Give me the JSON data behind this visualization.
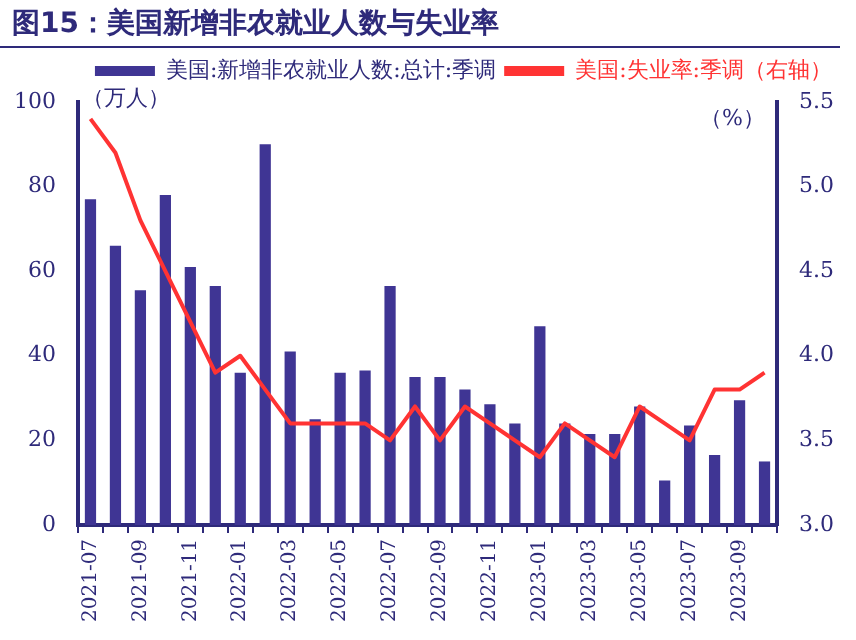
{
  "chart_data": {
    "type": "bar",
    "title": "图15：美国新增非农就业人数与失业率",
    "ylabel": "（万人）",
    "y2label": "（%）",
    "categories": [
      "2021-07",
      null,
      "2021-09",
      null,
      "2021-11",
      null,
      "2022-01",
      null,
      "2022-03",
      null,
      "2022-05",
      null,
      "2022-07",
      null,
      "2022-09",
      null,
      "2022-11",
      null,
      "2023-01",
      null,
      "2023-03",
      null,
      "2023-05",
      null,
      "2023-07",
      null,
      "2023-09",
      null
    ],
    "series": [
      {
        "name": "美国:新增非农就业人数:总计:季调",
        "color": "#3f3594",
        "values": [
          77,
          66,
          55.5,
          78,
          61,
          56.5,
          36,
          90,
          41,
          25,
          36,
          36.5,
          56.5,
          35,
          35,
          32,
          28.5,
          24,
          47,
          24,
          21.5,
          21.5,
          28,
          10.5,
          23.5,
          16.5,
          29.5,
          15
        ]
      },
      {
        "name": "美国:失业率:季调（右轴）",
        "type": "line",
        "axis": "y2",
        "color": "#ff3333",
        "values": [
          5.4,
          5.2,
          4.8,
          4.5,
          4.2,
          3.9,
          4.0,
          3.8,
          3.6,
          3.6,
          3.6,
          3.6,
          3.5,
          3.7,
          3.5,
          3.7,
          3.6,
          3.5,
          3.4,
          3.6,
          3.5,
          3.4,
          3.7,
          3.6,
          3.5,
          3.8,
          3.8,
          3.9
        ]
      }
    ],
    "ylim": [
      0,
      100
    ],
    "yticks": [
      0,
      20,
      40,
      60,
      80,
      100
    ],
    "y2lim": [
      3.0,
      5.5
    ],
    "y2ticks": [
      {
        "value": 3.0,
        "label": "3.0"
      },
      {
        "value": 3.5,
        "label": "3.5"
      },
      {
        "value": 4.0,
        "label": "4.0"
      },
      {
        "value": 4.5,
        "label": "4.5"
      },
      {
        "value": 5.0,
        "label": "5.0"
      },
      {
        "value": 5.5,
        "label": "5.5"
      }
    ],
    "legend": "top right",
    "marker": "none"
  }
}
